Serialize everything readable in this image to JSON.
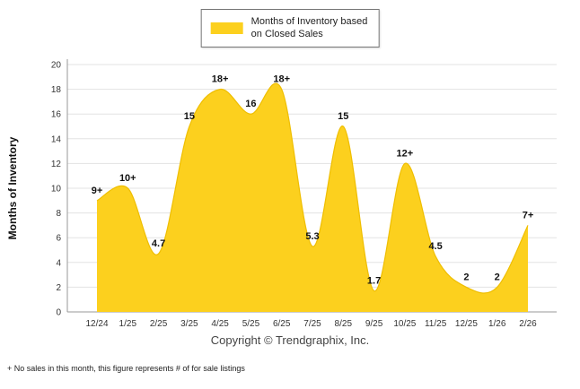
{
  "legend": {
    "label_line1": "Months of Inventory based",
    "label_line2": "on Closed Sales"
  },
  "footer": {
    "copyright": "Copyright © Trendgraphix, Inc.",
    "footnote": "+ No sales in this month, this figure represents # of for sale listings"
  },
  "chart_data": {
    "type": "area",
    "title": "Months of Inventory based on Closed Sales",
    "categories": [
      "12/24",
      "1/25",
      "2/25",
      "3/25",
      "4/25",
      "5/25",
      "6/25",
      "7/25",
      "8/25",
      "9/25",
      "10/25",
      "11/25",
      "12/25",
      "1/26",
      "2/26"
    ],
    "values": [
      9,
      10,
      4.7,
      15,
      18,
      16,
      18,
      5.3,
      15,
      1.7,
      12,
      4.5,
      2,
      2,
      7
    ],
    "point_labels": [
      "9+",
      "10+",
      "4.7",
      "15",
      "18+",
      "16",
      "18+",
      "5.3",
      "15",
      "1.7",
      "12+",
      "4.5",
      "2",
      "2",
      "7+"
    ],
    "xlabel": "",
    "ylabel": "Months of Inventory",
    "ylim": [
      0,
      20
    ],
    "ytick_step": 2,
    "grid": true,
    "legend_position": "top",
    "area_fill": "#FCD01E",
    "area_stroke": "#EFBE00",
    "axis_color": "#999999",
    "grid_color": "#e3e3e3",
    "tick_label_color": "#333333",
    "point_label_color": "#111111"
  }
}
